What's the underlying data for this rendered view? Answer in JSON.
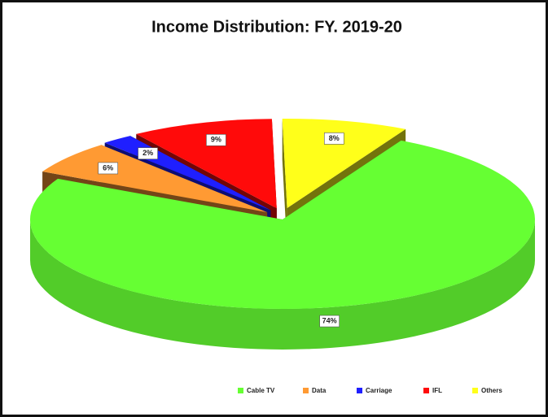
{
  "chart_data": {
    "type": "pie",
    "title": "Income Distribution: FY. 2019-20",
    "categories": [
      "Cable TV",
      "Data",
      "Carriage",
      "IFL",
      "Others"
    ],
    "values": [
      74,
      6,
      2,
      9,
      8
    ],
    "value_labels": [
      "74%",
      "6%",
      "2%",
      "9%",
      "8%"
    ],
    "colors": [
      "#66ff33",
      "#ff9a33",
      "#1f1fff",
      "#ff0a0a",
      "#ffff1a"
    ],
    "legend": "bottom"
  }
}
